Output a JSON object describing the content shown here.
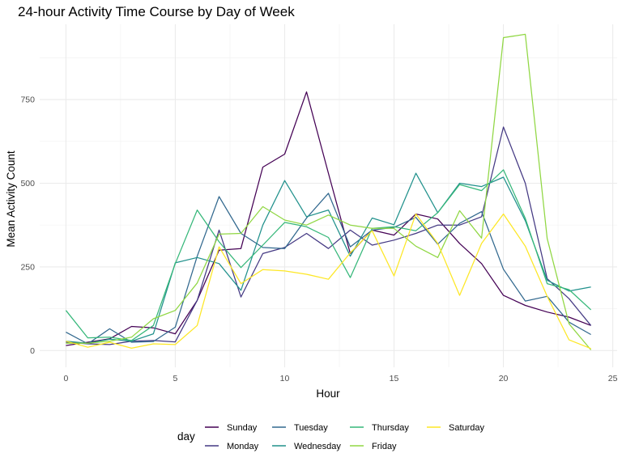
{
  "chart_data": {
    "type": "line",
    "title": "24-hour Activity Time Course by Day of Week",
    "xlabel": "Hour",
    "ylabel": "Mean Activity Count",
    "xlim": [
      -1.2,
      25.2
    ],
    "ylim": [
      -50,
      975
    ],
    "x_ticks": [
      0,
      5,
      10,
      15,
      20,
      25
    ],
    "y_ticks": [
      0,
      250,
      500,
      750
    ],
    "grid": true,
    "legend_title": "day",
    "legend_position": "bottom",
    "x": [
      0,
      1,
      2,
      3,
      4,
      5,
      6,
      7,
      8,
      9,
      10,
      11,
      12,
      13,
      14,
      15,
      16,
      17,
      18,
      19,
      20,
      21,
      22,
      23,
      24
    ],
    "series": [
      {
        "name": "Sunday",
        "color": "#440154",
        "values": [
          15,
          25,
          35,
          72,
          68,
          50,
          150,
          300,
          305,
          548,
          587,
          773,
          530,
          290,
          360,
          345,
          408,
          393,
          320,
          260,
          165,
          135,
          115,
          100,
          75
        ]
      },
      {
        "name": "Monday",
        "color": "#443983",
        "values": [
          25,
          20,
          18,
          28,
          30,
          26,
          150,
          360,
          160,
          290,
          308,
          350,
          305,
          360,
          315,
          330,
          350,
          375,
          375,
          400,
          668,
          500,
          215,
          155,
          75
        ]
      },
      {
        "name": "Tuesday",
        "color": "#31688e",
        "values": [
          55,
          20,
          65,
          25,
          27,
          70,
          282,
          460,
          350,
          308,
          305,
          396,
          470,
          310,
          360,
          368,
          398,
          318,
          380,
          415,
          243,
          148,
          162,
          85,
          48
        ]
      },
      {
        "name": "Wednesday",
        "color": "#21918c",
        "values": [
          28,
          22,
          34,
          28,
          50,
          262,
          278,
          260,
          180,
          375,
          508,
          400,
          420,
          282,
          396,
          376,
          530,
          412,
          500,
          490,
          518,
          388,
          210,
          178,
          190
        ]
      },
      {
        "name": "Thursday",
        "color": "#35b779",
        "values": [
          120,
          38,
          40,
          30,
          75,
          260,
          420,
          325,
          248,
          315,
          383,
          370,
          338,
          218,
          365,
          370,
          358,
          412,
          496,
          478,
          540,
          395,
          200,
          182,
          122
        ]
      },
      {
        "name": "Friday",
        "color": "#90d743",
        "values": [
          22,
          22,
          28,
          40,
          95,
          120,
          202,
          348,
          350,
          430,
          390,
          375,
          405,
          375,
          365,
          365,
          312,
          278,
          418,
          336,
          935,
          945,
          335,
          80,
          2
        ]
      },
      {
        "name": "Saturday",
        "color": "#fde725",
        "values": [
          28,
          10,
          25,
          7,
          20,
          18,
          75,
          310,
          200,
          242,
          238,
          228,
          213,
          292,
          358,
          223,
          408,
          320,
          165,
          320,
          408,
          312,
          162,
          32,
          6
        ]
      }
    ]
  }
}
